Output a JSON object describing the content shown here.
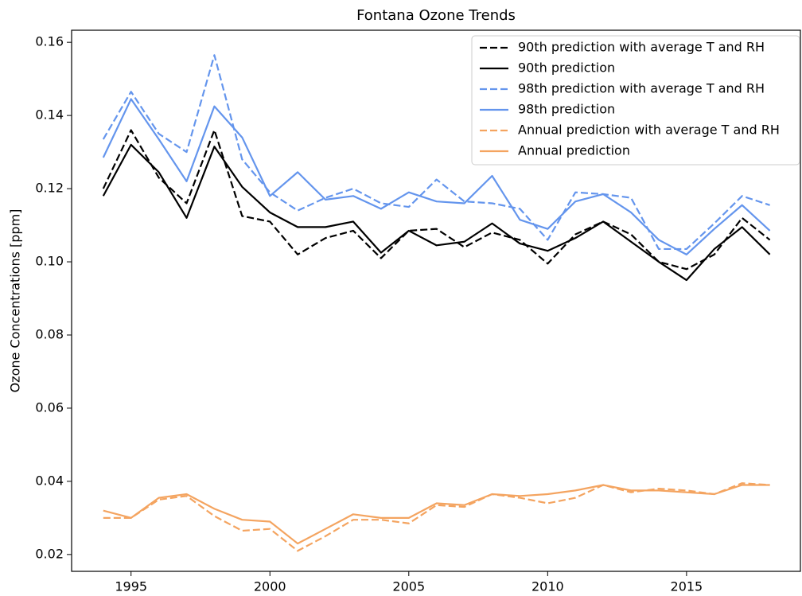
{
  "chart_data": {
    "type": "line",
    "title": "Fontana Ozone Trends",
    "y_label": "Ozone Concentrations [ppm]",
    "x": [
      1994,
      1995,
      1996,
      1997,
      1998,
      1999,
      2000,
      2001,
      2002,
      2003,
      2004,
      2005,
      2006,
      2007,
      2008,
      2009,
      2010,
      2011,
      2012,
      2013,
      2014,
      2015,
      2016,
      2017,
      2018
    ],
    "xlim": [
      1992.86,
      2019.1
    ],
    "xticks": [
      1995,
      2000,
      2005,
      2010,
      2015
    ],
    "ylim": [
      0.0154,
      0.1633
    ],
    "yticks": [
      0.02,
      0.04,
      0.06,
      0.08,
      {
        "value": 0.1,
        "label": "0.10"
      },
      0.12,
      0.14,
      0.16
    ],
    "grid": false,
    "legend": "upper right",
    "series": [
      {
        "name": "90th prediction with average T and RH",
        "color": "#000000",
        "dashed": true,
        "values": [
          0.12,
          0.136,
          0.123,
          0.116,
          0.136,
          0.1125,
          0.111,
          0.102,
          0.1065,
          0.1085,
          0.101,
          0.1085,
          0.109,
          0.104,
          0.108,
          0.106,
          0.0995,
          0.1075,
          0.111,
          0.1075,
          0.1,
          0.098,
          0.102,
          0.112,
          0.106
        ]
      },
      {
        "name": "90th prediction",
        "color": "#000000",
        "dashed": false,
        "values": [
          0.118,
          0.132,
          0.1245,
          0.112,
          0.1315,
          0.1205,
          0.1135,
          0.1095,
          0.1095,
          0.111,
          0.1025,
          0.1085,
          0.1045,
          0.1055,
          0.1105,
          0.105,
          0.103,
          0.1065,
          0.111,
          0.1055,
          0.1,
          0.095,
          0.1035,
          0.1095,
          0.102
        ]
      },
      {
        "name": "98th prediction with average T and RH",
        "color": "#6495ed",
        "dashed": true,
        "values": [
          0.1335,
          0.1465,
          0.135,
          0.13,
          0.1565,
          0.128,
          0.119,
          0.114,
          0.1175,
          0.12,
          0.116,
          0.115,
          0.1225,
          0.1165,
          0.116,
          0.1145,
          0.106,
          0.119,
          0.1185,
          0.1175,
          0.1035,
          0.1035,
          0.1105,
          0.118,
          0.1155
        ]
      },
      {
        "name": "98th prediction",
        "color": "#6495ed",
        "dashed": false,
        "values": [
          0.1285,
          0.1445,
          0.1335,
          0.122,
          0.1425,
          0.134,
          0.118,
          0.1245,
          0.117,
          0.118,
          0.1145,
          0.119,
          0.1165,
          0.116,
          0.1235,
          0.1115,
          0.109,
          0.1165,
          0.1185,
          0.1135,
          0.106,
          0.102,
          0.109,
          0.1155,
          0.1085
        ]
      },
      {
        "name": "Annual prediction with average T and RH",
        "color": "#f4a460",
        "dashed": true,
        "values": [
          0.03,
          0.03,
          0.035,
          0.036,
          0.0305,
          0.0265,
          0.027,
          0.021,
          0.025,
          0.0295,
          0.0295,
          0.0285,
          0.0335,
          0.033,
          0.0365,
          0.0355,
          0.034,
          0.0355,
          0.039,
          0.037,
          0.038,
          0.0375,
          0.0365,
          0.0395,
          0.039
        ]
      },
      {
        "name": "Annual prediction",
        "color": "#f4a460",
        "dashed": false,
        "values": [
          0.032,
          0.03,
          0.0355,
          0.0365,
          0.0325,
          0.0295,
          0.029,
          0.023,
          0.027,
          0.031,
          0.03,
          0.03,
          0.034,
          0.0335,
          0.0365,
          0.036,
          0.0365,
          0.0375,
          0.039,
          0.0375,
          0.0375,
          0.037,
          0.0365,
          0.039,
          0.039
        ]
      }
    ]
  }
}
